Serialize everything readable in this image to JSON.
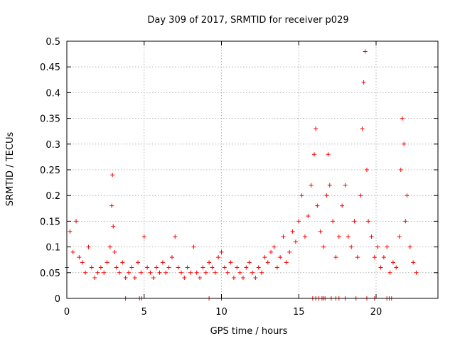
{
  "chart_data": {
    "type": "scatter",
    "title": "Day 309 of 2017, SRMTID for receiver p029",
    "xlabel": "GPS time / hours",
    "ylabel": "SRMTID / TECUs",
    "xlim": [
      0,
      24
    ],
    "ylim": [
      0,
      0.5
    ],
    "grid": true,
    "x_ticks": [
      0,
      5,
      10,
      15,
      20
    ],
    "x_tick_labels": [
      "0",
      "5",
      "10",
      "15",
      "20"
    ],
    "y_ticks": [
      0,
      0.05,
      0.1,
      0.15,
      0.2,
      0.25,
      0.3,
      0.35,
      0.4,
      0.45,
      0.5
    ],
    "y_tick_labels": [
      "0",
      "0.05",
      "0.1",
      "0.15",
      "0.2",
      "0.25",
      "0.3",
      "0.35",
      "0.4",
      "0.45",
      "0.5"
    ],
    "marker": "+",
    "color": "#ff0000",
    "series": [
      {
        "name": "SRMTID",
        "x": [
          0.0,
          0.2,
          0.4,
          0.6,
          0.8,
          1.0,
          1.2,
          1.4,
          1.6,
          1.8,
          2.0,
          2.2,
          2.4,
          2.6,
          2.8,
          2.9,
          2.95,
          3.0,
          3.1,
          3.2,
          3.4,
          3.6,
          3.8,
          4.0,
          4.2,
          4.4,
          4.6,
          4.8,
          5.0,
          5.2,
          5.4,
          5.6,
          5.8,
          6.0,
          6.2,
          6.4,
          6.6,
          6.8,
          7.0,
          7.2,
          7.4,
          7.6,
          7.8,
          8.0,
          8.2,
          8.4,
          8.6,
          8.8,
          9.0,
          9.2,
          9.4,
          9.6,
          9.8,
          10.0,
          10.2,
          10.4,
          10.6,
          10.8,
          11.0,
          11.2,
          11.4,
          11.6,
          11.8,
          12.0,
          12.2,
          12.4,
          12.6,
          12.8,
          13.0,
          13.2,
          13.4,
          13.6,
          13.8,
          14.0,
          14.2,
          14.4,
          14.6,
          14.8,
          15.0,
          15.2,
          15.4,
          15.6,
          15.8,
          16.0,
          16.1,
          16.2,
          16.4,
          16.6,
          16.8,
          16.9,
          17.0,
          17.2,
          17.4,
          17.6,
          17.8,
          18.0,
          18.2,
          18.4,
          18.6,
          18.8,
          19.0,
          19.1,
          19.2,
          19.3,
          19.4,
          19.5,
          19.7,
          19.9,
          20.1,
          20.3,
          20.5,
          20.7,
          20.9,
          21.1,
          21.3,
          21.5,
          21.6,
          21.7,
          21.8,
          21.9,
          22.0,
          22.2,
          22.4,
          22.6
        ],
        "y": [
          0.06,
          0.13,
          0.09,
          0.15,
          0.08,
          0.07,
          0.05,
          0.1,
          0.06,
          0.04,
          0.05,
          0.06,
          0.05,
          0.07,
          0.1,
          0.18,
          0.24,
          0.14,
          0.09,
          0.06,
          0.05,
          0.07,
          0.04,
          0.05,
          0.06,
          0.04,
          0.07,
          0.05,
          0.12,
          0.06,
          0.05,
          0.04,
          0.06,
          0.05,
          0.07,
          0.05,
          0.06,
          0.08,
          0.12,
          0.06,
          0.05,
          0.04,
          0.06,
          0.05,
          0.1,
          0.05,
          0.04,
          0.06,
          0.05,
          0.07,
          0.06,
          0.05,
          0.08,
          0.09,
          0.06,
          0.05,
          0.07,
          0.04,
          0.06,
          0.05,
          0.04,
          0.06,
          0.07,
          0.05,
          0.04,
          0.06,
          0.05,
          0.08,
          0.07,
          0.09,
          0.1,
          0.06,
          0.08,
          0.12,
          0.07,
          0.09,
          0.13,
          0.11,
          0.15,
          0.2,
          0.12,
          0.16,
          0.22,
          0.28,
          0.33,
          0.18,
          0.13,
          0.1,
          0.2,
          0.28,
          0.22,
          0.15,
          0.08,
          0.12,
          0.18,
          0.22,
          0.12,
          0.1,
          0.15,
          0.08,
          0.2,
          0.33,
          0.42,
          0.48,
          0.25,
          0.15,
          0.12,
          0.08,
          0.1,
          0.06,
          0.08,
          0.1,
          0.05,
          0.07,
          0.06,
          0.12,
          0.25,
          0.35,
          0.3,
          0.15,
          0.2,
          0.1,
          0.07,
          0.05
        ],
        "zero_x": [
          3.8,
          4.7,
          4.85,
          9.2,
          10.0,
          15.9,
          16.1,
          16.3,
          16.5,
          16.6,
          16.7,
          17.1,
          17.4,
          17.6,
          18.0,
          18.7,
          19.4,
          19.9,
          20.7,
          20.85,
          21.0
        ]
      }
    ]
  }
}
